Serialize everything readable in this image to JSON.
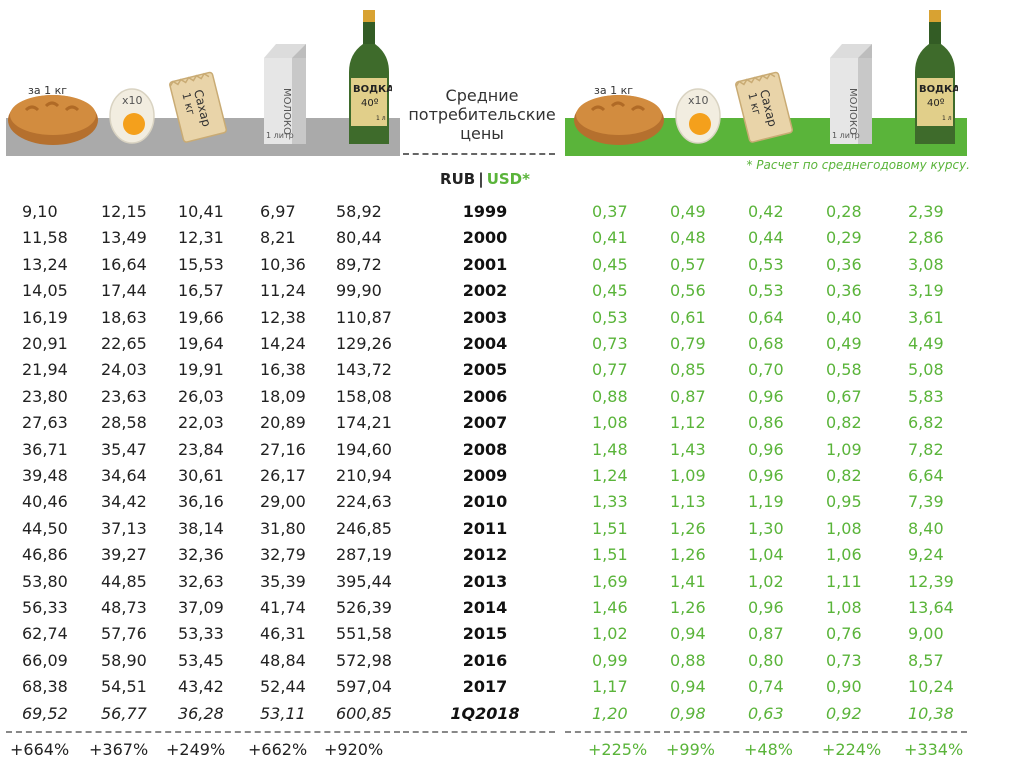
{
  "header": {
    "title_lines": [
      "Средние",
      "потребительские",
      "цены"
    ],
    "currency_rub": "RUB",
    "currency_sep": "|",
    "currency_usd": "USD*",
    "note": "* Расчет по среднегодовому курсу."
  },
  "icons": {
    "bread_label": "за 1 кг",
    "egg_label": "x10",
    "sugar_label_1": "Сахар",
    "sugar_label_2": "1 кг",
    "milk_label": "МОЛОКО",
    "milk_volume": "1 литр",
    "vodka_label": "ВОДКА",
    "vodka_proof": "40º",
    "vodka_volume": "1 л"
  },
  "colors": {
    "accent_green": "#5ab43a",
    "shelf_gray": "#aaaaaa"
  },
  "chart_data": {
    "type": "table",
    "columns": [
      "bread",
      "eggs",
      "sugar",
      "milk",
      "vodka"
    ],
    "rows": [
      {
        "year": "1999",
        "rub": [
          "9,10",
          "12,15",
          "10,41",
          "6,97",
          "58,92"
        ],
        "usd": [
          "0,37",
          "0,49",
          "0,42",
          "0,28",
          "2,39"
        ]
      },
      {
        "year": "2000",
        "rub": [
          "11,58",
          "13,49",
          "12,31",
          "8,21",
          "80,44"
        ],
        "usd": [
          "0,41",
          "0,48",
          "0,44",
          "0,29",
          "2,86"
        ]
      },
      {
        "year": "2001",
        "rub": [
          "13,24",
          "16,64",
          "15,53",
          "10,36",
          "89,72"
        ],
        "usd": [
          "0,45",
          "0,57",
          "0,53",
          "0,36",
          "3,08"
        ]
      },
      {
        "year": "2002",
        "rub": [
          "14,05",
          "17,44",
          "16,57",
          "11,24",
          "99,90"
        ],
        "usd": [
          "0,45",
          "0,56",
          "0,53",
          "0,36",
          "3,19"
        ]
      },
      {
        "year": "2003",
        "rub": [
          "16,19",
          "18,63",
          "19,66",
          "12,38",
          "110,87"
        ],
        "usd": [
          "0,53",
          "0,61",
          "0,64",
          "0,40",
          "3,61"
        ]
      },
      {
        "year": "2004",
        "rub": [
          "20,91",
          "22,65",
          "19,64",
          "14,24",
          "129,26"
        ],
        "usd": [
          "0,73",
          "0,79",
          "0,68",
          "0,49",
          "4,49"
        ]
      },
      {
        "year": "2005",
        "rub": [
          "21,94",
          "24,03",
          "19,91",
          "16,38",
          "143,72"
        ],
        "usd": [
          "0,77",
          "0,85",
          "0,70",
          "0,58",
          "5,08"
        ]
      },
      {
        "year": "2006",
        "rub": [
          "23,80",
          "23,63",
          "26,03",
          "18,09",
          "158,08"
        ],
        "usd": [
          "0,88",
          "0,87",
          "0,96",
          "0,67",
          "5,83"
        ]
      },
      {
        "year": "2007",
        "rub": [
          "27,63",
          "28,58",
          "22,03",
          "20,89",
          "174,21"
        ],
        "usd": [
          "1,08",
          "1,12",
          "0,86",
          "0,82",
          "6,82"
        ]
      },
      {
        "year": "2008",
        "rub": [
          "36,71",
          "35,47",
          "23,84",
          "27,16",
          "194,60"
        ],
        "usd": [
          "1,48",
          "1,43",
          "0,96",
          "1,09",
          "7,82"
        ]
      },
      {
        "year": "2009",
        "rub": [
          "39,48",
          "34,64",
          "30,61",
          "26,17",
          "210,94"
        ],
        "usd": [
          "1,24",
          "1,09",
          "0,96",
          "0,82",
          "6,64"
        ]
      },
      {
        "year": "2010",
        "rub": [
          "40,46",
          "34,42",
          "36,16",
          "29,00",
          "224,63"
        ],
        "usd": [
          "1,33",
          "1,13",
          "1,19",
          "0,95",
          "7,39"
        ]
      },
      {
        "year": "2011",
        "rub": [
          "44,50",
          "37,13",
          "38,14",
          "31,80",
          "246,85"
        ],
        "usd": [
          "1,51",
          "1,26",
          "1,30",
          "1,08",
          "8,40"
        ]
      },
      {
        "year": "2012",
        "rub": [
          "46,86",
          "39,27",
          "32,36",
          "32,79",
          "287,19"
        ],
        "usd": [
          "1,51",
          "1,26",
          "1,04",
          "1,06",
          "9,24"
        ]
      },
      {
        "year": "2013",
        "rub": [
          "53,80",
          "44,85",
          "32,63",
          "35,39",
          "395,44"
        ],
        "usd": [
          "1,69",
          "1,41",
          "1,02",
          "1,11",
          "12,39"
        ]
      },
      {
        "year": "2014",
        "rub": [
          "56,33",
          "48,73",
          "37,09",
          "41,74",
          "526,39"
        ],
        "usd": [
          "1,46",
          "1,26",
          "0,96",
          "1,08",
          "13,64"
        ]
      },
      {
        "year": "2015",
        "rub": [
          "62,74",
          "57,76",
          "53,33",
          "46,31",
          "551,58"
        ],
        "usd": [
          "1,02",
          "0,94",
          "0,87",
          "0,76",
          "9,00"
        ]
      },
      {
        "year": "2016",
        "rub": [
          "66,09",
          "58,90",
          "53,45",
          "48,84",
          "572,98"
        ],
        "usd": [
          "0,99",
          "0,88",
          "0,80",
          "0,73",
          "8,57"
        ]
      },
      {
        "year": "2017",
        "rub": [
          "68,38",
          "54,51",
          "43,42",
          "52,44",
          "597,04"
        ],
        "usd": [
          "1,17",
          "0,94",
          "0,74",
          "0,90",
          "10,24"
        ]
      },
      {
        "year": "1Q2018",
        "italic": true,
        "rub": [
          "69,52",
          "56,77",
          "36,28",
          "53,11",
          "600,85"
        ],
        "usd": [
          "1,20",
          "0,98",
          "0,63",
          "0,92",
          "10,38"
        ]
      }
    ],
    "totals": {
      "rub": [
        "+664%",
        "+367%",
        "+249%",
        "+662%",
        "+920%"
      ],
      "usd": [
        "+225%",
        "+99%",
        "+48%",
        "+224%",
        "+334%"
      ]
    }
  }
}
